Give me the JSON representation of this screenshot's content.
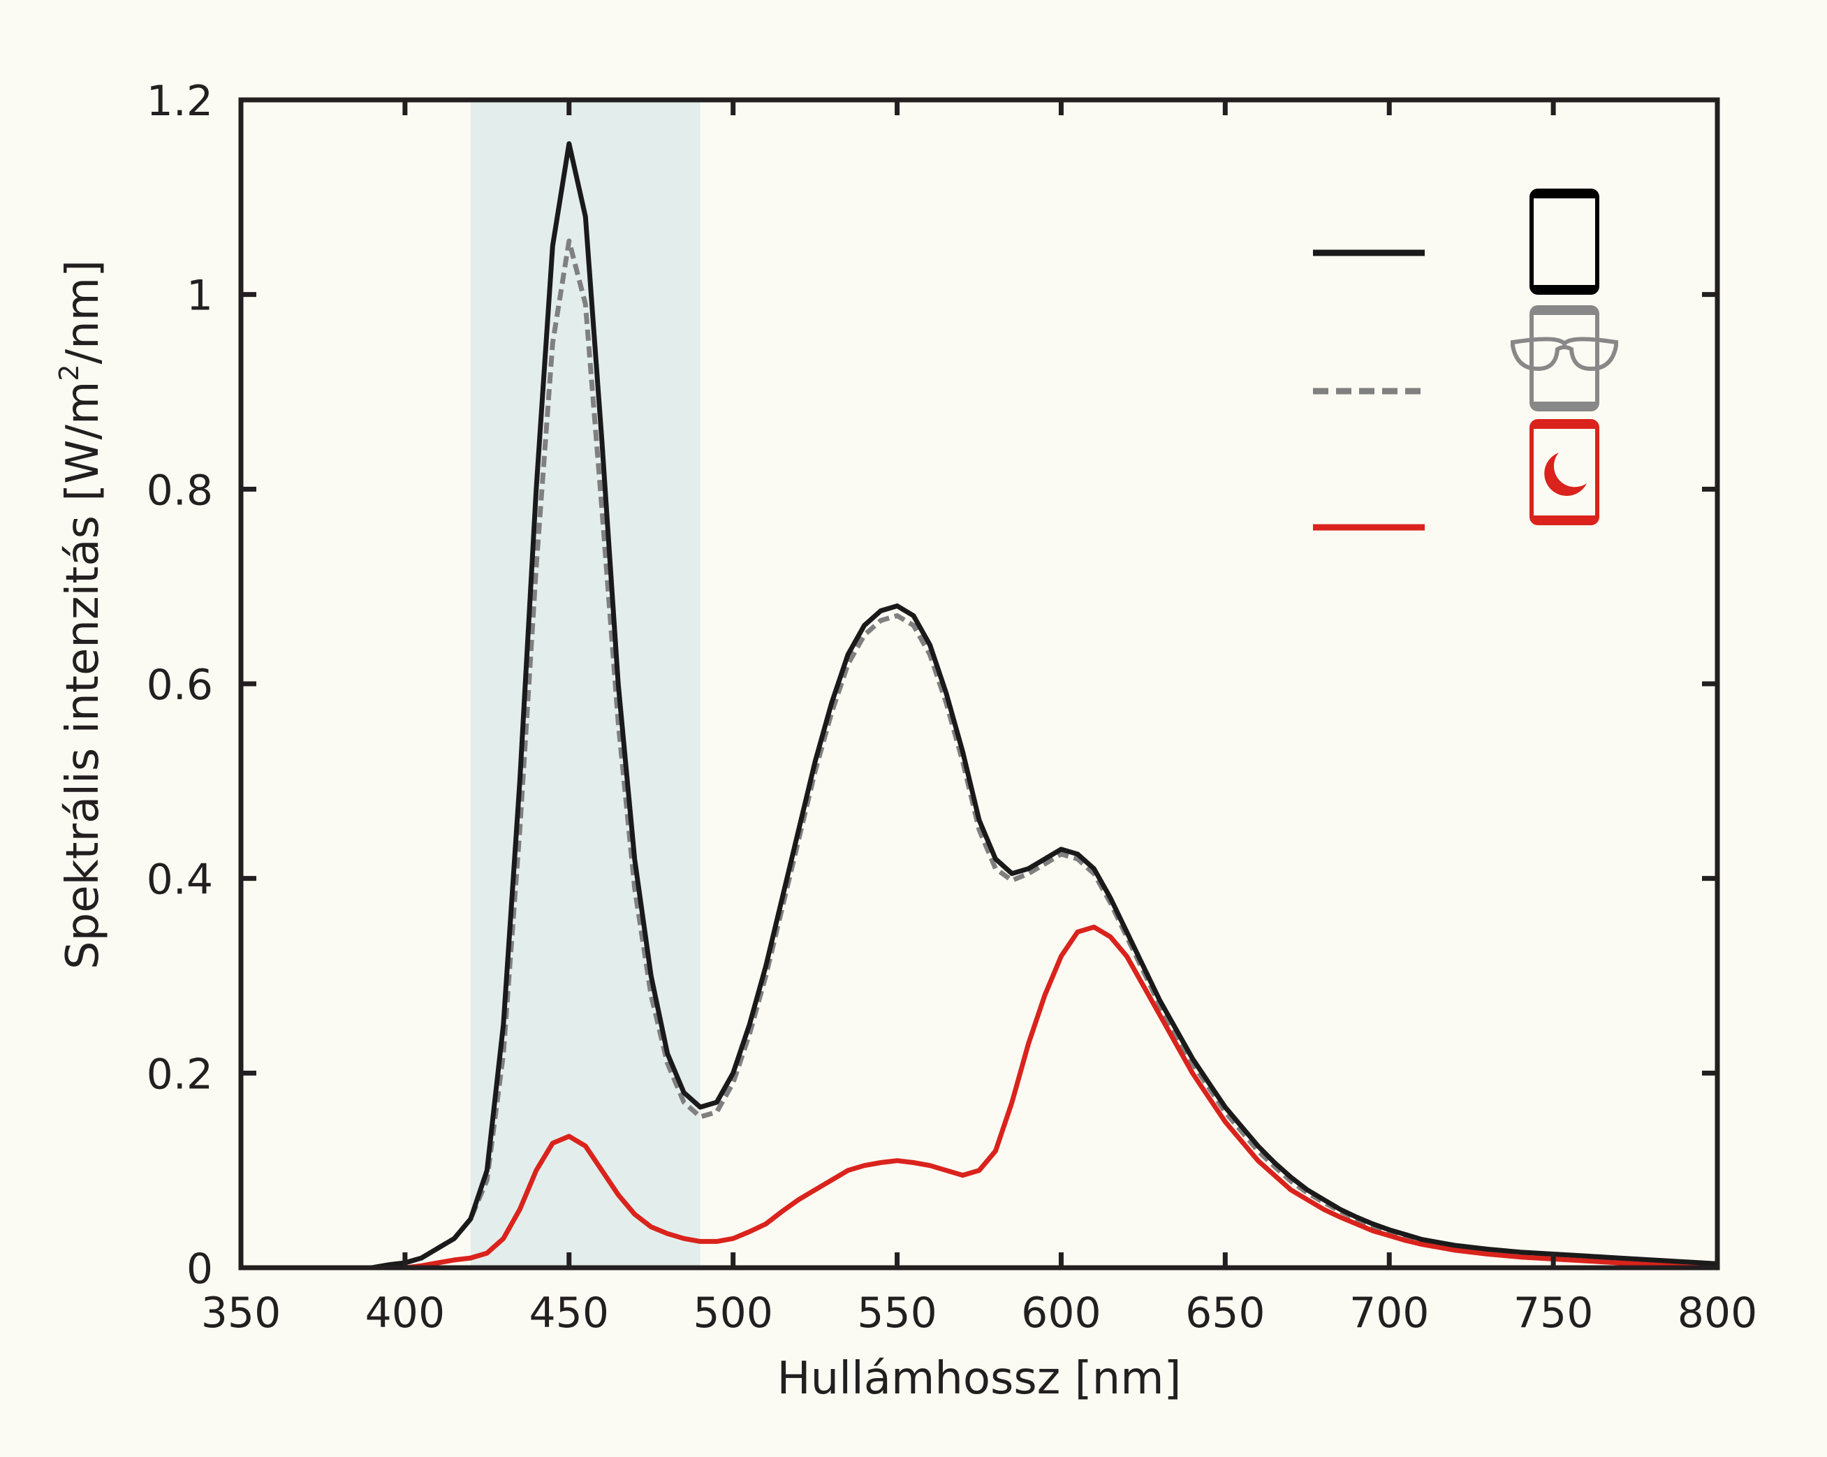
{
  "chart_data": {
    "type": "line",
    "title": "",
    "xlabel": "Hullámhossz [nm]",
    "ylabel": "Spektrális intenzitás [W/m²/nm]",
    "ylabel_parts": {
      "main": "Spektrális intenzitás [W/m",
      "sup": "2",
      "tail": "/nm]"
    },
    "xlim": [
      350,
      800
    ],
    "ylim": [
      0,
      1.2
    ],
    "xticks": [
      350,
      400,
      450,
      500,
      550,
      600,
      650,
      700,
      750,
      800
    ],
    "xtick_labels": [
      "350",
      "400",
      "450",
      "500",
      "550",
      "600",
      "650",
      "700",
      "750",
      "800"
    ],
    "yticks": [
      0,
      0.2,
      0.4,
      0.6,
      0.8,
      1.0,
      1.2
    ],
    "ytick_labels": [
      "0",
      "0.2",
      "0.4",
      "0.6",
      "0.8",
      "1",
      "1.2"
    ],
    "grid": false,
    "legend_placement": "top-right",
    "highlight_band": {
      "x0": 420,
      "x1": 490,
      "color": "#e3eeec"
    },
    "x": [
      390,
      395,
      400,
      405,
      410,
      415,
      420,
      425,
      430,
      435,
      440,
      445,
      450,
      455,
      460,
      465,
      470,
      475,
      480,
      485,
      490,
      495,
      500,
      505,
      510,
      515,
      520,
      525,
      530,
      535,
      540,
      545,
      550,
      555,
      560,
      565,
      570,
      575,
      580,
      585,
      590,
      595,
      600,
      605,
      610,
      615,
      620,
      625,
      630,
      635,
      640,
      645,
      650,
      655,
      660,
      665,
      670,
      675,
      680,
      685,
      690,
      695,
      700,
      705,
      710,
      715,
      720,
      730,
      740,
      750,
      760,
      770,
      780,
      790,
      800
    ],
    "series": [
      {
        "name": "phone",
        "icon": "phone-icon",
        "color": "#1a1a1a",
        "dash": "solid",
        "values": [
          0.0,
          0.003,
          0.005,
          0.01,
          0.02,
          0.03,
          0.05,
          0.1,
          0.25,
          0.5,
          0.8,
          1.05,
          1.155,
          1.08,
          0.85,
          0.6,
          0.42,
          0.3,
          0.22,
          0.18,
          0.165,
          0.17,
          0.2,
          0.25,
          0.31,
          0.38,
          0.45,
          0.52,
          0.58,
          0.63,
          0.66,
          0.675,
          0.68,
          0.67,
          0.64,
          0.59,
          0.53,
          0.46,
          0.42,
          0.405,
          0.41,
          0.42,
          0.43,
          0.425,
          0.41,
          0.38,
          0.345,
          0.31,
          0.275,
          0.245,
          0.215,
          0.19,
          0.165,
          0.145,
          0.125,
          0.108,
          0.093,
          0.08,
          0.07,
          0.06,
          0.052,
          0.045,
          0.039,
          0.034,
          0.029,
          0.026,
          0.023,
          0.019,
          0.016,
          0.014,
          0.012,
          0.01,
          0.008,
          0.006,
          0.004
        ]
      },
      {
        "name": "phone-with-blue-filter-glasses",
        "icon": "glasses-phone-icon",
        "color": "#808080",
        "dash": "dashed",
        "values": [
          0.0,
          0.003,
          0.005,
          0.01,
          0.02,
          0.03,
          0.05,
          0.09,
          0.22,
          0.45,
          0.72,
          0.95,
          1.055,
          0.99,
          0.78,
          0.56,
          0.39,
          0.28,
          0.21,
          0.17,
          0.155,
          0.16,
          0.19,
          0.24,
          0.3,
          0.37,
          0.44,
          0.51,
          0.57,
          0.62,
          0.65,
          0.665,
          0.67,
          0.66,
          0.63,
          0.58,
          0.52,
          0.45,
          0.41,
          0.398,
          0.405,
          0.415,
          0.425,
          0.42,
          0.405,
          0.375,
          0.34,
          0.305,
          0.27,
          0.24,
          0.21,
          0.185,
          0.16,
          0.14,
          0.12,
          0.104,
          0.089,
          0.077,
          0.067,
          0.058,
          0.05,
          0.043,
          0.037,
          0.032,
          0.028,
          0.025,
          0.022,
          0.018,
          0.015,
          0.013,
          0.011,
          0.009,
          0.007,
          0.005,
          0.004
        ]
      },
      {
        "name": "phone-night-mode",
        "icon": "night-mode-phone-icon",
        "color": "#d9231c",
        "dash": "solid",
        "values": [
          0.0,
          0.0,
          0.0,
          0.002,
          0.005,
          0.008,
          0.01,
          0.015,
          0.03,
          0.06,
          0.1,
          0.128,
          0.135,
          0.125,
          0.1,
          0.075,
          0.055,
          0.042,
          0.035,
          0.03,
          0.027,
          0.027,
          0.03,
          0.037,
          0.045,
          0.058,
          0.07,
          0.08,
          0.09,
          0.1,
          0.105,
          0.108,
          0.11,
          0.108,
          0.105,
          0.1,
          0.095,
          0.1,
          0.12,
          0.17,
          0.23,
          0.28,
          0.32,
          0.345,
          0.35,
          0.34,
          0.32,
          0.29,
          0.26,
          0.23,
          0.2,
          0.175,
          0.15,
          0.13,
          0.11,
          0.095,
          0.08,
          0.07,
          0.06,
          0.052,
          0.045,
          0.038,
          0.033,
          0.028,
          0.024,
          0.021,
          0.018,
          0.014,
          0.011,
          0.009,
          0.007,
          0.005,
          0.004,
          0.003,
          0.002
        ]
      }
    ]
  }
}
